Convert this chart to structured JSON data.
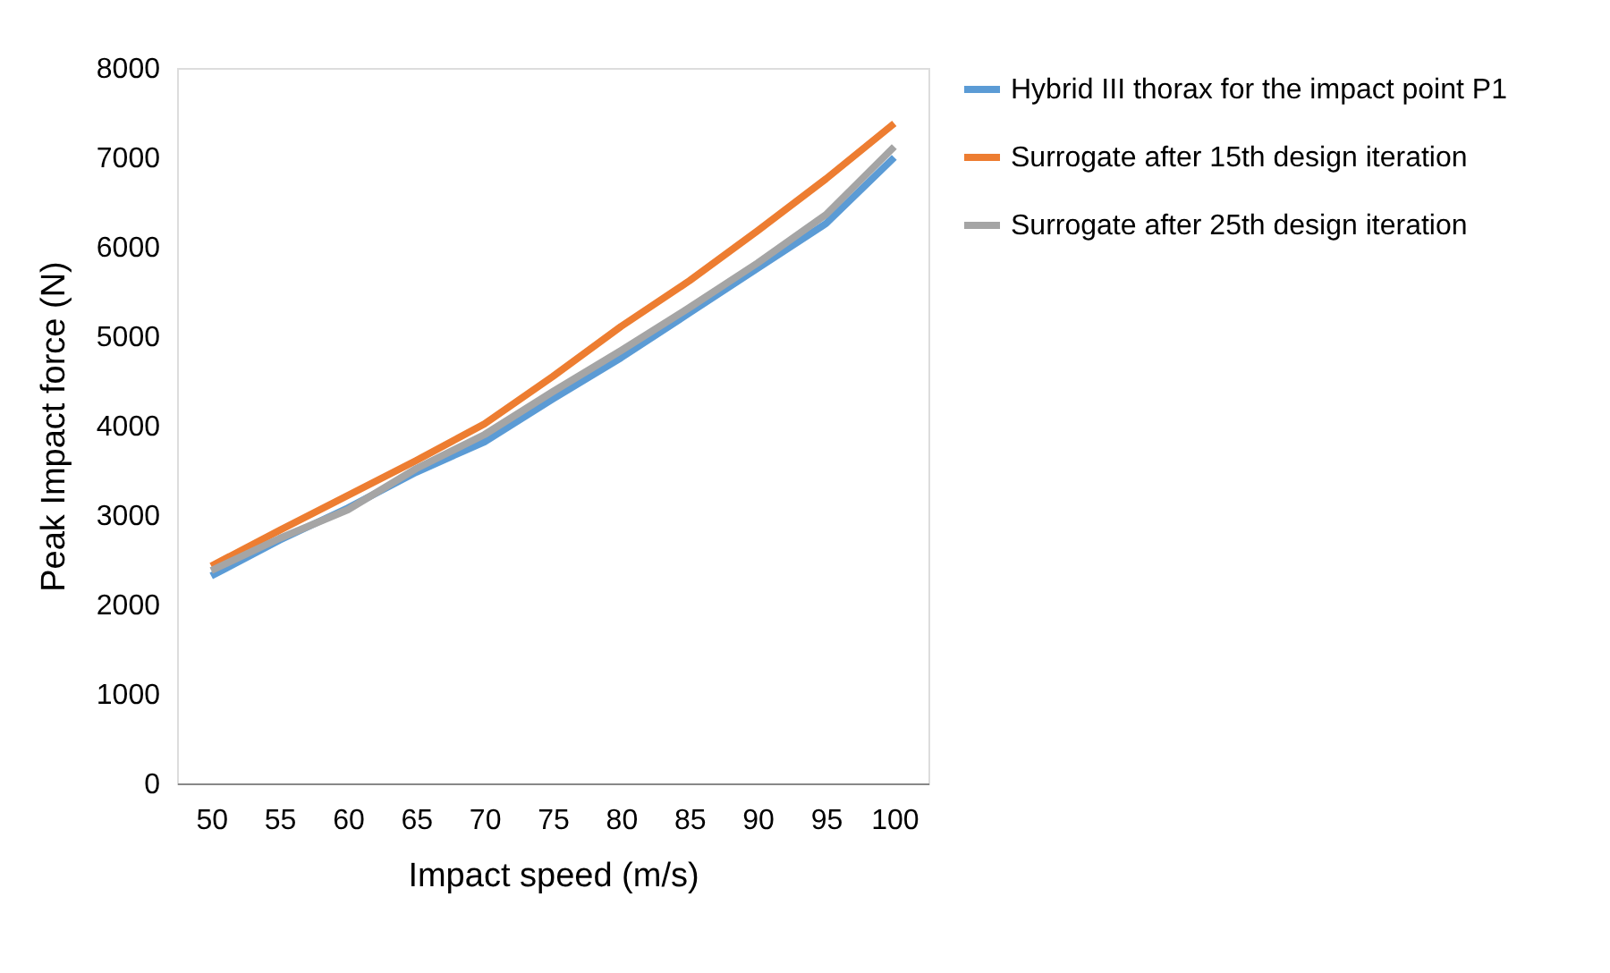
{
  "chart_data": {
    "type": "line",
    "xlabel": "Impact speed (m/s)",
    "ylabel": "Peak Impact force (N)",
    "categories": [
      "50",
      "55",
      "60",
      "65",
      "70",
      "75",
      "80",
      "85",
      "90",
      "95",
      "100"
    ],
    "series": [
      {
        "name": "Hybrid III thorax  for the impact point P1",
        "color": "#5b9bd5",
        "values": [
          2320,
          2720,
          3080,
          3480,
          3820,
          4300,
          4760,
          5260,
          5760,
          6260,
          7000
        ]
      },
      {
        "name": "Surrogate after 15th design iteration",
        "color": "#ed7d31",
        "values": [
          2430,
          2830,
          3220,
          3610,
          4020,
          4550,
          5110,
          5620,
          6180,
          6760,
          7380
        ]
      },
      {
        "name": "Surrogate after 25th design iteration",
        "color": "#a5a5a5",
        "values": [
          2380,
          2740,
          3060,
          3520,
          3900,
          4380,
          4840,
          5320,
          5820,
          6360,
          7120
        ]
      }
    ],
    "ylim": [
      0,
      8000
    ],
    "yticks": [
      0,
      1000,
      2000,
      3000,
      4000,
      5000,
      6000,
      7000,
      8000
    ],
    "grid": false,
    "legend": "right",
    "marker": "none",
    "line_style": "solid"
  }
}
